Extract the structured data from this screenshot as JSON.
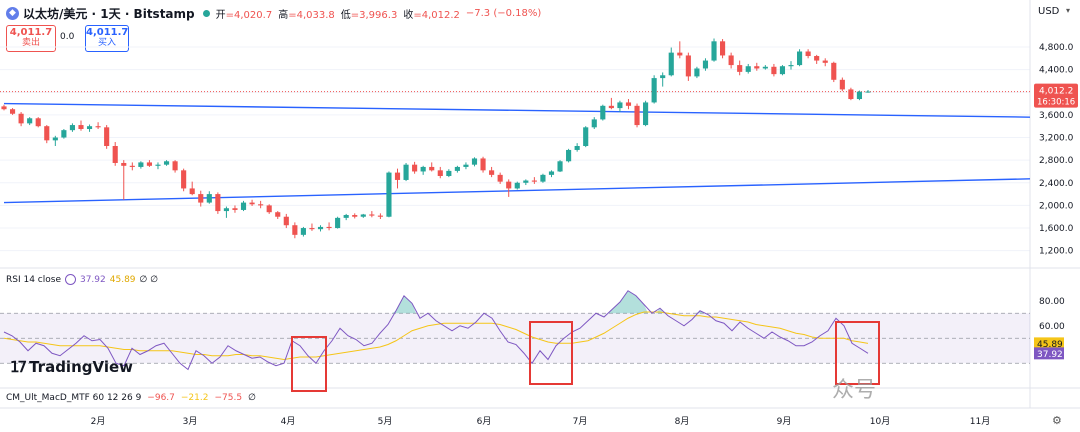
{
  "header": {
    "symbol": "以太坊/美元 · 1天 · Bitstamp",
    "open_label": "开",
    "open": "=4,020.7",
    "high_label": "高",
    "high": "=4,033.8",
    "low_label": "低",
    "low": "=3,996.3",
    "close_label": "收",
    "close": "=4,012.2",
    "change": "−7.3 (−0.18%)"
  },
  "trade": {
    "sell_price": "4,011.7",
    "sell_label": "卖出",
    "spread": "0.0",
    "buy_price": "4,011.7",
    "buy_label": "买入"
  },
  "currency": "USD",
  "last_price_tag": {
    "price": "4,012.2",
    "countdown": "16:30:16"
  },
  "rsi_header": {
    "name": "RSI 14 close",
    "rsi": "37.92",
    "ma": "45.89",
    "extra": "∅ ∅"
  },
  "macd_header": {
    "name": "CM_Ult_MacD_MTF 60 12 26 9",
    "v1": "−96.7",
    "v2": "−21.2",
    "v3": "−75.5",
    "extra": "∅"
  },
  "branding": {
    "logo": "TradingView"
  },
  "watermark": "众号",
  "icons": {
    "settings": "gear-icon",
    "symbol": "ethereum-icon"
  },
  "colors": {
    "up": "#26a69a",
    "down": "#ef5350",
    "trend": "#2962ff",
    "rsi": "#7e57c2",
    "rsi_ma": "#f5c518",
    "highlight": "#e53935"
  },
  "chart_data": {
    "type": "candlestick",
    "y_axis_ticks": [
      "4,800.0",
      "4,400.0",
      "4,000.0",
      "3,600.0",
      "3,200.0",
      "2,800.0",
      "2,400.0",
      "2,000.0",
      "1,600.0",
      "1,200.0"
    ],
    "ylim": [
      1000,
      5100
    ],
    "x_axis_ticks": [
      "2月",
      "3月",
      "4月",
      "5月",
      "6月",
      "7月",
      "8月",
      "9月",
      "10月",
      "11月"
    ],
    "candles": [
      [
        3750,
        3780,
        3680,
        3700
      ],
      [
        3700,
        3720,
        3600,
        3620
      ],
      [
        3620,
        3650,
        3400,
        3450
      ],
      [
        3450,
        3560,
        3420,
        3540
      ],
      [
        3540,
        3560,
        3380,
        3400
      ],
      [
        3400,
        3420,
        3100,
        3150
      ],
      [
        3150,
        3230,
        3050,
        3200
      ],
      [
        3200,
        3350,
        3180,
        3330
      ],
      [
        3330,
        3450,
        3300,
        3420
      ],
      [
        3420,
        3500,
        3320,
        3350
      ],
      [
        3350,
        3430,
        3300,
        3400
      ],
      [
        3400,
        3470,
        3350,
        3380
      ],
      [
        3380,
        3420,
        3000,
        3050
      ],
      [
        3050,
        3120,
        2700,
        2750
      ],
      [
        2750,
        2800,
        2100,
        2700
      ],
      [
        2700,
        2760,
        2620,
        2680
      ],
      [
        2680,
        2780,
        2650,
        2760
      ],
      [
        2760,
        2800,
        2680,
        2700
      ],
      [
        2700,
        2760,
        2640,
        2720
      ],
      [
        2720,
        2800,
        2700,
        2780
      ],
      [
        2780,
        2800,
        2580,
        2620
      ],
      [
        2620,
        2650,
        2250,
        2300
      ],
      [
        2300,
        2420,
        2180,
        2200
      ],
      [
        2200,
        2260,
        1980,
        2050
      ],
      [
        2050,
        2250,
        2030,
        2200
      ],
      [
        2200,
        2230,
        1850,
        1900
      ],
      [
        1900,
        1980,
        1780,
        1950
      ],
      [
        1950,
        2000,
        1870,
        1920
      ],
      [
        1920,
        2080,
        1900,
        2050
      ],
      [
        2050,
        2100,
        1990,
        2020
      ],
      [
        2020,
        2080,
        1950,
        2000
      ],
      [
        2000,
        2020,
        1850,
        1880
      ],
      [
        1880,
        1900,
        1760,
        1800
      ],
      [
        1800,
        1850,
        1600,
        1650
      ],
      [
        1650,
        1700,
        1420,
        1480
      ],
      [
        1480,
        1620,
        1450,
        1600
      ],
      [
        1600,
        1680,
        1550,
        1580
      ],
      [
        1580,
        1650,
        1540,
        1620
      ],
      [
        1620,
        1700,
        1560,
        1600
      ],
      [
        1600,
        1800,
        1590,
        1780
      ],
      [
        1780,
        1850,
        1740,
        1830
      ],
      [
        1830,
        1860,
        1770,
        1800
      ],
      [
        1800,
        1850,
        1780,
        1840
      ],
      [
        1840,
        1900,
        1790,
        1820
      ],
      [
        1820,
        1860,
        1760,
        1800
      ],
      [
        1800,
        2600,
        1790,
        2580
      ],
      [
        2580,
        2650,
        2300,
        2450
      ],
      [
        2450,
        2750,
        2430,
        2720
      ],
      [
        2720,
        2770,
        2560,
        2600
      ],
      [
        2600,
        2700,
        2540,
        2680
      ],
      [
        2680,
        2760,
        2600,
        2620
      ],
      [
        2620,
        2680,
        2480,
        2520
      ],
      [
        2520,
        2640,
        2500,
        2610
      ],
      [
        2610,
        2700,
        2580,
        2680
      ],
      [
        2680,
        2760,
        2640,
        2720
      ],
      [
        2720,
        2850,
        2690,
        2830
      ],
      [
        2830,
        2860,
        2580,
        2620
      ],
      [
        2620,
        2680,
        2500,
        2540
      ],
      [
        2540,
        2580,
        2380,
        2420
      ],
      [
        2420,
        2460,
        2150,
        2300
      ],
      [
        2300,
        2420,
        2280,
        2400
      ],
      [
        2400,
        2460,
        2360,
        2440
      ],
      [
        2440,
        2500,
        2380,
        2420
      ],
      [
        2420,
        2560,
        2400,
        2540
      ],
      [
        2540,
        2620,
        2500,
        2600
      ],
      [
        2600,
        2800,
        2590,
        2780
      ],
      [
        2780,
        3000,
        2760,
        2980
      ],
      [
        2980,
        3100,
        2950,
        3050
      ],
      [
        3050,
        3400,
        3030,
        3380
      ],
      [
        3380,
        3560,
        3350,
        3520
      ],
      [
        3520,
        3780,
        3500,
        3760
      ],
      [
        3760,
        3900,
        3700,
        3720
      ],
      [
        3720,
        3850,
        3650,
        3820
      ],
      [
        3820,
        3880,
        3700,
        3760
      ],
      [
        3760,
        3800,
        3380,
        3420
      ],
      [
        3420,
        3850,
        3400,
        3820
      ],
      [
        3820,
        4300,
        3800,
        4250
      ],
      [
        4250,
        4350,
        4100,
        4300
      ],
      [
        4300,
        4790,
        4280,
        4700
      ],
      [
        4700,
        4900,
        4600,
        4650
      ],
      [
        4650,
        4700,
        4200,
        4280
      ],
      [
        4280,
        4450,
        4250,
        4420
      ],
      [
        4420,
        4600,
        4380,
        4560
      ],
      [
        4560,
        4950,
        4540,
        4900
      ],
      [
        4900,
        4940,
        4600,
        4650
      ],
      [
        4650,
        4700,
        4420,
        4480
      ],
      [
        4480,
        4560,
        4300,
        4360
      ],
      [
        4360,
        4500,
        4330,
        4460
      ],
      [
        4460,
        4520,
        4380,
        4420
      ],
      [
        4420,
        4480,
        4400,
        4450
      ],
      [
        4450,
        4500,
        4280,
        4320
      ],
      [
        4320,
        4480,
        4300,
        4460
      ],
      [
        4460,
        4550,
        4400,
        4480
      ],
      [
        4480,
        4760,
        4460,
        4720
      ],
      [
        4720,
        4760,
        4600,
        4640
      ],
      [
        4640,
        4660,
        4500,
        4560
      ],
      [
        4560,
        4600,
        4460,
        4520
      ],
      [
        4520,
        4540,
        4180,
        4220
      ],
      [
        4220,
        4260,
        4020,
        4050
      ],
      [
        4050,
        4080,
        3860,
        3880
      ],
      [
        3880,
        4030,
        3860,
        4010
      ],
      [
        4010,
        4040,
        3990,
        4012
      ]
    ],
    "trendlines": [
      {
        "name": "upper",
        "from": {
          "x_index": 0,
          "y": 3800
        },
        "to": {
          "x_index": 120,
          "y": 3560
        }
      },
      {
        "name": "lower",
        "from": {
          "x_index": 0,
          "y": 2050
        },
        "to": {
          "x_index": 120,
          "y": 2470
        }
      }
    ],
    "rsi": {
      "ylim": [
        15,
        95
      ],
      "ticks": [
        "80.00",
        "60.00"
      ],
      "overbought": 70,
      "midline": 50,
      "oversold": 30,
      "values": [
        55,
        52,
        47,
        40,
        46,
        44,
        38,
        36,
        41,
        46,
        52,
        48,
        49,
        42,
        30,
        28,
        42,
        37,
        40,
        44,
        46,
        38,
        30,
        25,
        40,
        36,
        30,
        35,
        44,
        40,
        37,
        34,
        35,
        31,
        28,
        30,
        48,
        44,
        36,
        30,
        40,
        48,
        58,
        52,
        49,
        44,
        46,
        54,
        61,
        72,
        84,
        78,
        66,
        70,
        64,
        60,
        56,
        60,
        58,
        63,
        70,
        66,
        56,
        47,
        45,
        38,
        30,
        40,
        33,
        44,
        50,
        55,
        58,
        64,
        70,
        67,
        73,
        79,
        88,
        84,
        77,
        70,
        74,
        68,
        64,
        60,
        65,
        72,
        69,
        64,
        62,
        56,
        63,
        58,
        54,
        50,
        55,
        51,
        48,
        44,
        44,
        47,
        52,
        56,
        66,
        60,
        46,
        42,
        37.92
      ],
      "ma_values": [
        50,
        49,
        48,
        47,
        47,
        46,
        45,
        44,
        44,
        44,
        44,
        44,
        44,
        43,
        42,
        41,
        41,
        40,
        40,
        40,
        40,
        40,
        39,
        38,
        37,
        37,
        36,
        36,
        36,
        37,
        37,
        36,
        36,
        35,
        34,
        33,
        34,
        35,
        35,
        35,
        36,
        37,
        38,
        39,
        40,
        41,
        42,
        43,
        45,
        48,
        52,
        56,
        58,
        60,
        61,
        62,
        62,
        62,
        62,
        62,
        62,
        62,
        61,
        59,
        57,
        54,
        51,
        49,
        47,
        46,
        46,
        46,
        47,
        48,
        51,
        54,
        58,
        62,
        66,
        69,
        71,
        71,
        71,
        70,
        69,
        68,
        68,
        68,
        67,
        67,
        66,
        65,
        64,
        63,
        61,
        60,
        59,
        58,
        56,
        54,
        53,
        51,
        50,
        50,
        50,
        50,
        48,
        47,
        45.89
      ]
    }
  }
}
